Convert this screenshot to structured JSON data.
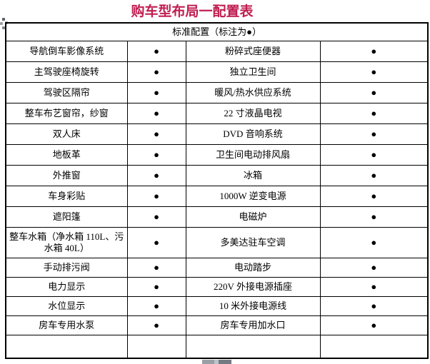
{
  "title": "购车型布局一配置表",
  "table": {
    "header": "标准配置（标注为●）",
    "rows": [
      {
        "left": "导航倒车影像系统",
        "left_mark": "●",
        "right": "粉碎式座便器",
        "right_mark": "●"
      },
      {
        "left": "主驾驶座椅旋转",
        "left_mark": "●",
        "right": "独立卫生间",
        "right_mark": "●"
      },
      {
        "left": "驾驶区隔帘",
        "left_mark": "●",
        "right": "暖风/热水供应系统",
        "right_mark": "●"
      },
      {
        "left": "整车布艺窗帘，纱窗",
        "left_mark": "●",
        "right": "22 寸液晶电视",
        "right_mark": "●"
      },
      {
        "left": "双人床",
        "left_mark": "●",
        "right": "DVD 音响系统",
        "right_mark": "●"
      },
      {
        "left": "地板革",
        "left_mark": "●",
        "right": "卫生间电动排风扇",
        "right_mark": "●"
      },
      {
        "left": "外推窗",
        "left_mark": "●",
        "right": "冰箱",
        "right_mark": "●"
      },
      {
        "left": "车身彩贴",
        "left_mark": "●",
        "right": "1000W 逆变电源",
        "right_mark": "●"
      },
      {
        "left": "遮阳篷",
        "left_mark": "●",
        "right": "电磁炉",
        "right_mark": "●"
      },
      {
        "left": "整车水箱（净水箱 110L、污水箱 40L）",
        "left_mark": "●",
        "right": "多美达驻车空调",
        "right_mark": "●"
      },
      {
        "left": "手动排污阀",
        "left_mark": "●",
        "right": "电动踏步",
        "right_mark": "●"
      },
      {
        "left": "电力显示",
        "left_mark": "●",
        "right": "220V 外接电源插座",
        "right_mark": "●"
      },
      {
        "left": "水位显示",
        "left_mark": "●",
        "right": "10 米外接电源线",
        "right_mark": "●"
      },
      {
        "left": "房车专用水泵",
        "left_mark": "●",
        "right": "房车专用加水口",
        "right_mark": "●"
      },
      {
        "left": "",
        "left_mark": "",
        "right": "",
        "right_mark": ""
      }
    ]
  },
  "colors": {
    "title_text": "#c01e50",
    "table_border": "#000000",
    "body_text": "#000000",
    "handle_gray": "#9aa0a6"
  },
  "icons": {
    "move_handle": "table-move-handle-dots",
    "bottom_handle": "table-resize-bar"
  }
}
